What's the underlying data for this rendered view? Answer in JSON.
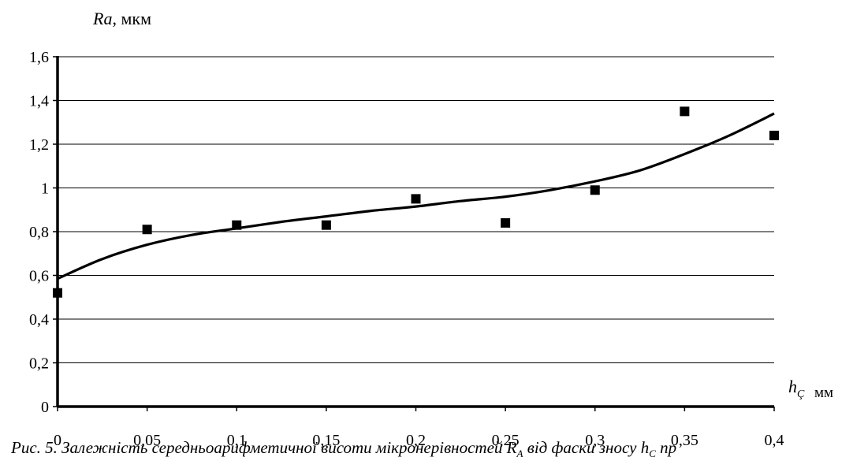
{
  "chart_data": {
    "type": "scatter",
    "ylabel": {
      "main": "Ra",
      "unit": ", мкм"
    },
    "xlabel": {
      "main": "h",
      "sub": "Ç",
      "unit": "мм"
    },
    "x_ticks": [
      "0",
      "0,05",
      "0,1",
      "0,15",
      "0,2",
      "0,25",
      "0,3",
      "0,35",
      "0,4"
    ],
    "y_ticks": [
      "0",
      "0,2",
      "0,4",
      "0,6",
      "0,8",
      "1",
      "1,2",
      "1,4",
      "1,6"
    ],
    "xlim": [
      0,
      0.4
    ],
    "ylim": [
      0,
      1.6
    ],
    "grid": "horizontal",
    "series": [
      {
        "kind": "markers",
        "marker": "square",
        "color": "#000000",
        "points": [
          [
            0,
            0.52
          ],
          [
            0.05,
            0.81
          ],
          [
            0.1,
            0.83
          ],
          [
            0.15,
            0.83
          ],
          [
            0.2,
            0.95
          ],
          [
            0.25,
            0.84
          ],
          [
            0.3,
            0.99
          ],
          [
            0.35,
            1.35
          ],
          [
            0.4,
            1.24
          ]
        ]
      },
      {
        "kind": "trend",
        "color": "#000000",
        "points": [
          [
            0,
            0.585
          ],
          [
            0.025,
            0.675
          ],
          [
            0.05,
            0.74
          ],
          [
            0.075,
            0.785
          ],
          [
            0.1,
            0.815
          ],
          [
            0.125,
            0.845
          ],
          [
            0.15,
            0.87
          ],
          [
            0.175,
            0.895
          ],
          [
            0.2,
            0.915
          ],
          [
            0.225,
            0.94
          ],
          [
            0.25,
            0.96
          ],
          [
            0.275,
            0.99
          ],
          [
            0.3,
            1.03
          ],
          [
            0.325,
            1.08
          ],
          [
            0.35,
            1.155
          ],
          [
            0.375,
            1.24
          ],
          [
            0.4,
            1.34
          ]
        ]
      }
    ]
  },
  "caption": {
    "text_1": "Рис. 5. Залежність середньоарифметичної висоти мікронерівностей ",
    "r": "R",
    "r_sub": "A",
    "text_2": " від фаски зносу ",
    "h": "h",
    "h_sub": "Ç",
    "text_3": " пр"
  }
}
